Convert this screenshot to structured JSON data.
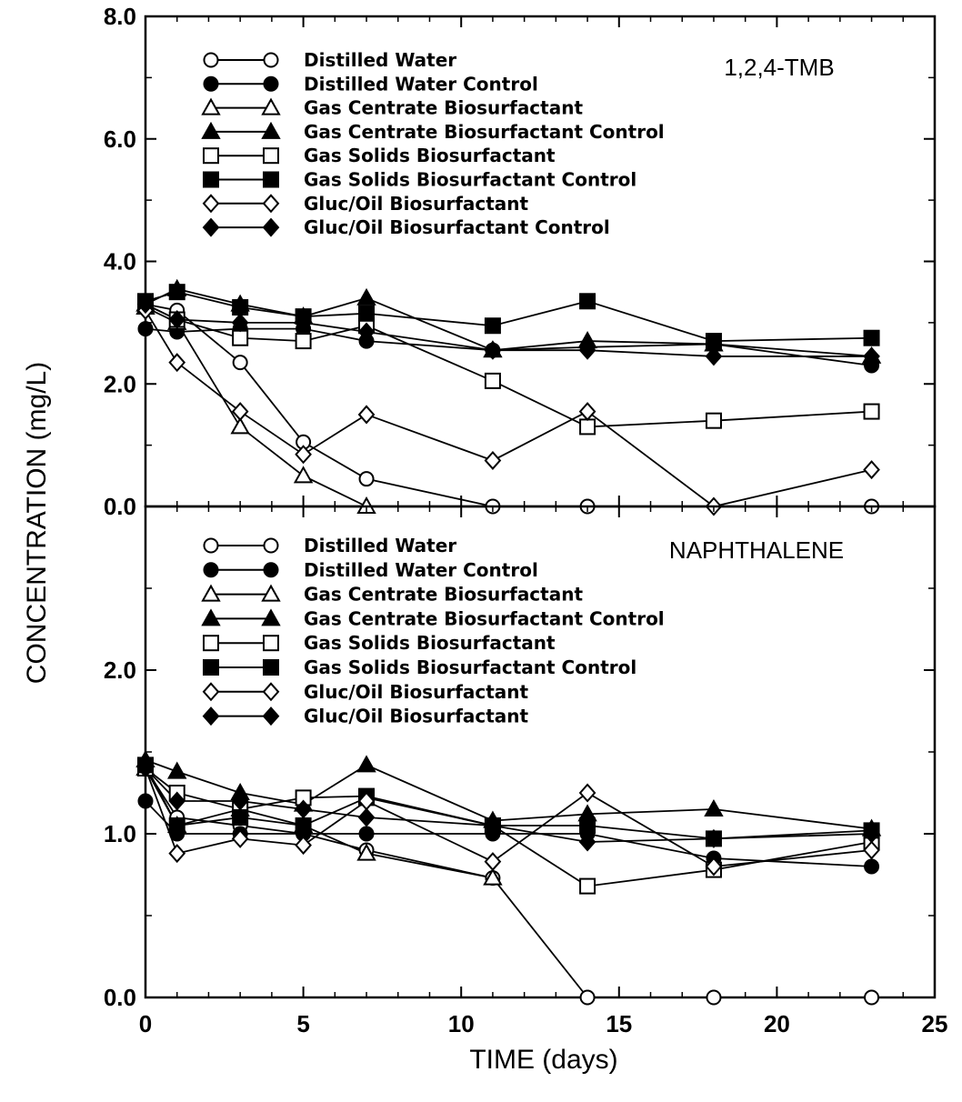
{
  "chart_data": [
    {
      "type": "line",
      "title": "1,2,4-TMB",
      "xlim": [
        0,
        25
      ],
      "ylim": [
        0,
        8
      ],
      "xticks": [
        "0",
        "5",
        "10",
        "15",
        "20",
        "25"
      ],
      "yticks": [
        "0.0",
        "2.0",
        "4.0",
        "6.0",
        "8.0"
      ],
      "legend_position": "top-left",
      "series": [
        {
          "name": "Distilled Water",
          "marker": "circle-open",
          "x": [
            0,
            1,
            3,
            5,
            7,
            11,
            14,
            23
          ],
          "y": [
            3.3,
            3.2,
            2.35,
            1.05,
            0.45,
            0.0,
            0.0,
            0.0
          ]
        },
        {
          "name": "Distilled Water Control",
          "marker": "circle-filled",
          "x": [
            0,
            1,
            3,
            5,
            7,
            11,
            14,
            18,
            23
          ],
          "y": [
            2.9,
            2.85,
            2.9,
            2.9,
            2.7,
            2.55,
            2.6,
            2.65,
            2.3
          ]
        },
        {
          "name": "Gas Centrate Biosurfactant",
          "marker": "triangle-open",
          "x": [
            0,
            1,
            3,
            5,
            7
          ],
          "y": [
            3.25,
            3.0,
            1.3,
            0.5,
            0.0
          ]
        },
        {
          "name": "Gas Centrate Biosurfactant Control",
          "marker": "triangle-filled",
          "x": [
            0,
            1,
            3,
            5,
            7,
            11,
            14,
            18,
            23
          ],
          "y": [
            3.3,
            3.55,
            3.3,
            3.1,
            3.4,
            2.55,
            2.7,
            2.65,
            2.45
          ]
        },
        {
          "name": "Gas Solids Biosurfactant",
          "marker": "square-open",
          "x": [
            0,
            1,
            3,
            5,
            7,
            11,
            14,
            18,
            23
          ],
          "y": [
            3.3,
            3.05,
            2.75,
            2.7,
            2.95,
            2.05,
            1.3,
            1.4,
            1.55
          ]
        },
        {
          "name": "Gas Solids Biosurfactant Control",
          "marker": "square-filled",
          "x": [
            0,
            1,
            3,
            5,
            7,
            11,
            14,
            18,
            23
          ],
          "y": [
            3.35,
            3.5,
            3.25,
            3.1,
            3.15,
            2.95,
            3.35,
            2.7,
            2.75
          ]
        },
        {
          "name": "Gluc/Oil Biosurfactant",
          "marker": "diamond-open",
          "x": [
            0,
            1,
            3,
            5,
            7,
            11,
            14,
            18,
            23
          ],
          "y": [
            3.2,
            2.35,
            1.55,
            0.85,
            1.5,
            0.75,
            1.55,
            0.0,
            0.6
          ]
        },
        {
          "name": "Gluc/Oil Biosurfactant Control",
          "marker": "diamond-filled",
          "x": [
            0,
            1,
            3,
            5,
            7,
            11,
            14,
            18,
            23
          ],
          "y": [
            3.3,
            3.05,
            3.0,
            3.0,
            2.85,
            2.55,
            2.55,
            2.45,
            2.45
          ]
        }
      ]
    },
    {
      "type": "line",
      "title": "NAPHTHALENE",
      "xlim": [
        0,
        25
      ],
      "ylim": [
        0,
        3
      ],
      "xticks": [
        "0",
        "5",
        "10",
        "15",
        "20",
        "25"
      ],
      "yticks": [
        "0.0",
        "1.0",
        "2.0"
      ],
      "legend_position": "top-left",
      "series": [
        {
          "name": "Distilled Water",
          "marker": "circle-open",
          "x": [
            0,
            1,
            3,
            5,
            7,
            11,
            14,
            18,
            23
          ],
          "y": [
            1.4,
            1.1,
            1.05,
            1.0,
            0.9,
            0.73,
            0.0,
            0.0,
            0.0
          ]
        },
        {
          "name": "Distilled Water Control",
          "marker": "circle-filled",
          "x": [
            0,
            1,
            3,
            5,
            7,
            11,
            14,
            18,
            23
          ],
          "y": [
            1.2,
            1.0,
            1.0,
            1.0,
            1.0,
            1.0,
            1.0,
            0.85,
            0.8
          ]
        },
        {
          "name": "Gas Centrate Biosurfactant",
          "marker": "triangle-open",
          "x": [
            0,
            1,
            3,
            5,
            7,
            11
          ],
          "y": [
            1.4,
            1.05,
            1.15,
            1.05,
            0.88,
            0.73
          ]
        },
        {
          "name": "Gas Centrate Biosurfactant Control",
          "marker": "triangle-filled",
          "x": [
            0,
            1,
            3,
            5,
            7,
            11,
            14,
            18,
            23
          ],
          "y": [
            1.45,
            1.38,
            1.25,
            1.18,
            1.42,
            1.08,
            1.12,
            1.15,
            1.03
          ]
        },
        {
          "name": "Gas Solids Biosurfactant",
          "marker": "square-open",
          "x": [
            0,
            1,
            3,
            5,
            7,
            11,
            14,
            18,
            23
          ],
          "y": [
            1.4,
            1.25,
            1.15,
            1.22,
            1.23,
            1.05,
            0.68,
            0.78,
            0.95
          ]
        },
        {
          "name": "Gas Solids Biosurfactant Control",
          "marker": "square-filled",
          "x": [
            0,
            1,
            3,
            5,
            7,
            11,
            14,
            18,
            23
          ],
          "y": [
            1.42,
            1.05,
            1.1,
            1.05,
            1.22,
            1.05,
            1.05,
            0.97,
            1.02
          ]
        },
        {
          "name": "Gluc/Oil Biosurfactant",
          "marker": "diamond-open",
          "x": [
            0,
            1,
            3,
            5,
            7,
            11,
            14,
            18,
            23
          ],
          "y": [
            1.4,
            0.88,
            0.97,
            0.93,
            1.2,
            0.83,
            1.25,
            0.8,
            0.9
          ]
        },
        {
          "name": "Gluc/Oil Biosurfactant",
          "marker": "diamond-filled",
          "x": [
            0,
            1,
            3,
            5,
            7,
            11,
            14,
            18,
            23
          ],
          "y": [
            1.4,
            1.2,
            1.2,
            1.15,
            1.1,
            1.05,
            0.95,
            0.97,
            1.0
          ]
        }
      ]
    }
  ],
  "axes": {
    "ylabel": "CONCENTRATION (mg/L)",
    "xlabel": "TIME (days)"
  }
}
